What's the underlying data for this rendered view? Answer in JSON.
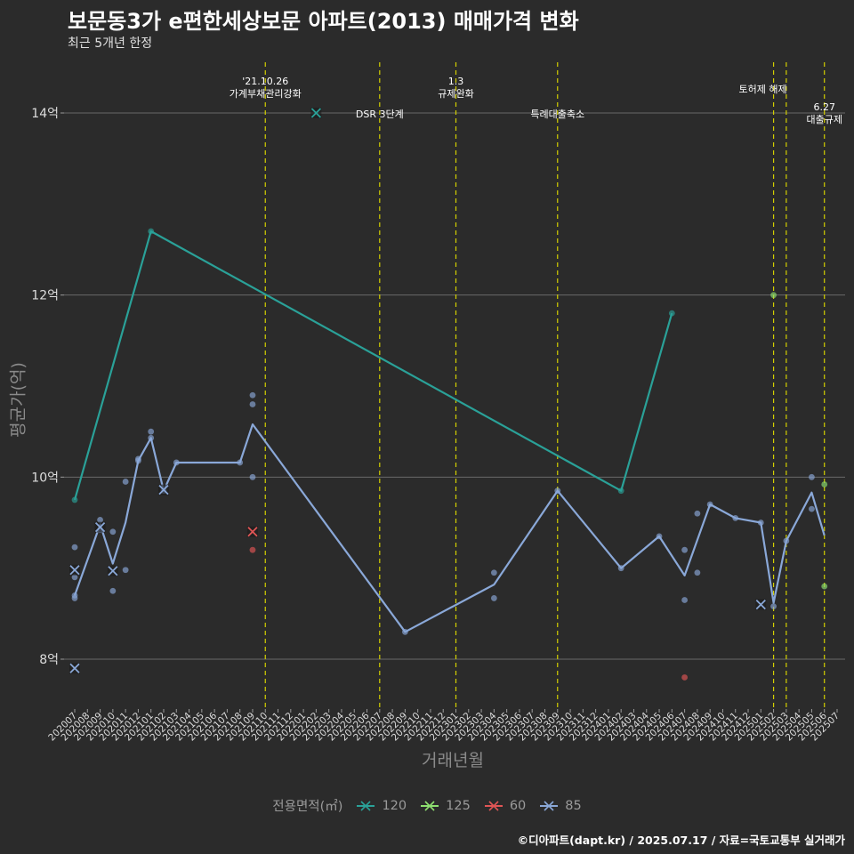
{
  "title": "보문동3가 e편한세상보문 아파트(2013) 매매가격 변화",
  "subtitle": "최근 5개년 한정",
  "caption": "©디아파트(dapt.kr) / 2025.07.17 / 자료=국토교통부 실거래가",
  "colors": {
    "background": "#2b2b2b",
    "grid": "#6a6a6a",
    "vline": "#d4d000",
    "s120": "#2aa198",
    "s125": "#8ee070",
    "s60": "#e05555",
    "s85": "#8aa8d8"
  },
  "chart_data": {
    "type": "line",
    "title": "보문동3가 e편한세상보문 아파트(2013) 매매가격 변화",
    "subtitle": "최근 5개년 한정",
    "xlabel": "거래년월",
    "ylabel": "평균가(억)",
    "yticks": [
      8,
      10,
      12,
      14
    ],
    "ytick_labels": [
      "8억",
      "10억",
      "12억",
      "14억"
    ],
    "ylim": [
      7.5,
      14.6
    ],
    "x_categories": [
      "202007",
      "202008",
      "202009",
      "202010",
      "202011",
      "202012",
      "202101",
      "202102",
      "202103",
      "202104",
      "202105",
      "202106",
      "202107",
      "202108",
      "202109",
      "202110",
      "202111",
      "202112",
      "202201",
      "202202",
      "202203",
      "202204",
      "202205",
      "202206",
      "202207",
      "202208",
      "202209",
      "202210",
      "202211",
      "202212",
      "202301",
      "202302",
      "202303",
      "202304",
      "202305",
      "202306",
      "202307",
      "202308",
      "202309",
      "202310",
      "202311",
      "202312",
      "202401",
      "202402",
      "202403",
      "202404",
      "202405",
      "202406",
      "202407",
      "202408",
      "202409",
      "202410",
      "202411",
      "202412",
      "202501",
      "202502",
      "202503",
      "202504",
      "202505",
      "202506",
      "202507"
    ],
    "legend_title": "전용면적(㎡)",
    "legend_position": "bottom",
    "grid": true,
    "series": [
      {
        "name": "120",
        "line": [
          [
            "202007",
            9.75
          ],
          [
            "202101",
            12.7
          ],
          [
            "202402",
            9.85
          ],
          [
            "202406",
            11.8
          ]
        ],
        "points": [
          [
            "202007",
            9.75
          ],
          [
            "202101",
            12.7
          ],
          [
            "202402",
            9.85
          ],
          [
            "202406",
            11.8
          ]
        ],
        "highlight": [
          [
            "202202",
            14.0
          ]
        ]
      },
      {
        "name": "125",
        "line": [],
        "points": [
          [
            "202502",
            12.0
          ],
          [
            "202506",
            9.92
          ],
          [
            "202506",
            8.8
          ]
        ],
        "highlight": []
      },
      {
        "name": "60",
        "line": [],
        "points": [
          [
            "202109",
            9.2
          ],
          [
            "202407",
            7.8
          ]
        ],
        "highlight": [
          [
            "202109",
            9.4
          ]
        ]
      },
      {
        "name": "85",
        "line": [
          [
            "202007",
            8.7
          ],
          [
            "202009",
            9.48
          ],
          [
            "202010",
            9.05
          ],
          [
            "202011",
            9.5
          ],
          [
            "202012",
            10.18
          ],
          [
            "202101",
            10.43
          ],
          [
            "202102",
            9.85
          ],
          [
            "202103",
            10.16
          ],
          [
            "202108",
            10.16
          ],
          [
            "202109",
            10.58
          ],
          [
            "202209",
            8.3
          ],
          [
            "202304",
            8.82
          ],
          [
            "202309",
            9.85
          ],
          [
            "202402",
            9.0
          ],
          [
            "202405",
            9.35
          ],
          [
            "202407",
            8.92
          ],
          [
            "202409",
            9.7
          ],
          [
            "202411",
            9.55
          ],
          [
            "202501",
            9.5
          ],
          [
            "202502",
            8.62
          ],
          [
            "202503",
            9.3
          ],
          [
            "202505",
            9.83
          ],
          [
            "202506",
            9.36
          ]
        ],
        "points": [
          [
            "202007",
            9.23
          ],
          [
            "202007",
            8.9
          ],
          [
            "202007",
            8.67
          ],
          [
            "202007",
            8.7
          ],
          [
            "202009",
            9.53
          ],
          [
            "202009",
            9.42
          ],
          [
            "202010",
            9.4
          ],
          [
            "202010",
            8.75
          ],
          [
            "202011",
            9.95
          ],
          [
            "202011",
            8.98
          ],
          [
            "202012",
            10.2
          ],
          [
            "202012",
            10.18
          ],
          [
            "202101",
            10.5
          ],
          [
            "202101",
            10.43
          ],
          [
            "202102",
            9.85
          ],
          [
            "202103",
            10.16
          ],
          [
            "202108",
            10.16
          ],
          [
            "202109",
            10.9
          ],
          [
            "202109",
            10.8
          ],
          [
            "202109",
            10.0
          ],
          [
            "202209",
            8.3
          ],
          [
            "202304",
            8.95
          ],
          [
            "202304",
            8.67
          ],
          [
            "202309",
            9.85
          ],
          [
            "202402",
            9.0
          ],
          [
            "202405",
            9.35
          ],
          [
            "202407",
            9.2
          ],
          [
            "202407",
            8.65
          ],
          [
            "202408",
            9.6
          ],
          [
            "202408",
            8.95
          ],
          [
            "202409",
            9.7
          ],
          [
            "202411",
            9.55
          ],
          [
            "202501",
            9.5
          ],
          [
            "202502",
            8.58
          ],
          [
            "202503",
            9.3
          ],
          [
            "202505",
            10.0
          ],
          [
            "202505",
            9.65
          ]
        ],
        "highlight": [
          [
            "202007",
            8.98
          ],
          [
            "202007",
            7.9
          ],
          [
            "202009",
            9.45
          ],
          [
            "202010",
            8.97
          ],
          [
            "202102",
            9.86
          ],
          [
            "202501",
            8.6
          ]
        ]
      }
    ],
    "annotations": [
      {
        "x": "202110",
        "lines": [
          "'21.10.26",
          "가계부채관리강화"
        ]
      },
      {
        "x": "202207",
        "lines": [
          "DSR 3단계"
        ]
      },
      {
        "x": "202301",
        "lines": [
          "1.3",
          "규제완화"
        ]
      },
      {
        "x": "202309",
        "lines": [
          "특례대출축소"
        ]
      },
      {
        "x": "202502",
        "lines": [
          "토허제 해제"
        ]
      },
      {
        "x": "202503",
        "lines": []
      },
      {
        "x": "202506",
        "lines": [
          "6.27",
          "대출규제"
        ]
      }
    ]
  }
}
